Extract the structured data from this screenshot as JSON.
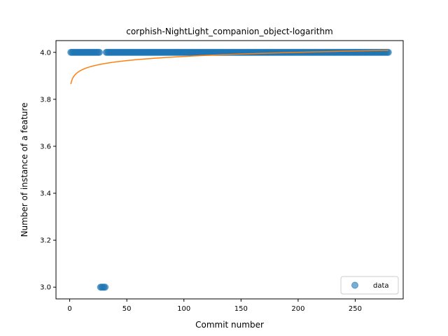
{
  "chart_data": {
    "type": "scatter",
    "title": "corphish-NightLight_companion_object-logarithm",
    "xlabel": "Commit number",
    "ylabel": "Number of instance of a feature",
    "xlim": [
      -12,
      292
    ],
    "ylim": [
      2.95,
      4.05
    ],
    "xticks": [
      0,
      50,
      100,
      150,
      200,
      250
    ],
    "yticks": [
      3.0,
      3.2,
      3.4,
      3.6,
      3.8,
      4.0
    ],
    "ytick_labels": [
      "3.0",
      "3.2",
      "3.4",
      "3.6",
      "3.8",
      "4.0"
    ],
    "grid": false,
    "legend": {
      "position": "lower-right",
      "entries": [
        "data"
      ]
    },
    "colors": {
      "data": "#1f77b4",
      "fit": "#ff7f0e"
    },
    "series": [
      {
        "name": "data",
        "kind": "scatter",
        "segments": [
          {
            "x_start": 1,
            "x_end": 26,
            "y": 4.0
          },
          {
            "x_start": 27,
            "x_end": 31,
            "y": 3.0
          },
          {
            "x_start": 32,
            "x_end": 279,
            "y": 4.0
          }
        ]
      },
      {
        "kind": "line",
        "model": "logarithmic",
        "x_range": [
          1,
          279
        ],
        "a": 3.865,
        "b": 0.0255
      }
    ]
  }
}
